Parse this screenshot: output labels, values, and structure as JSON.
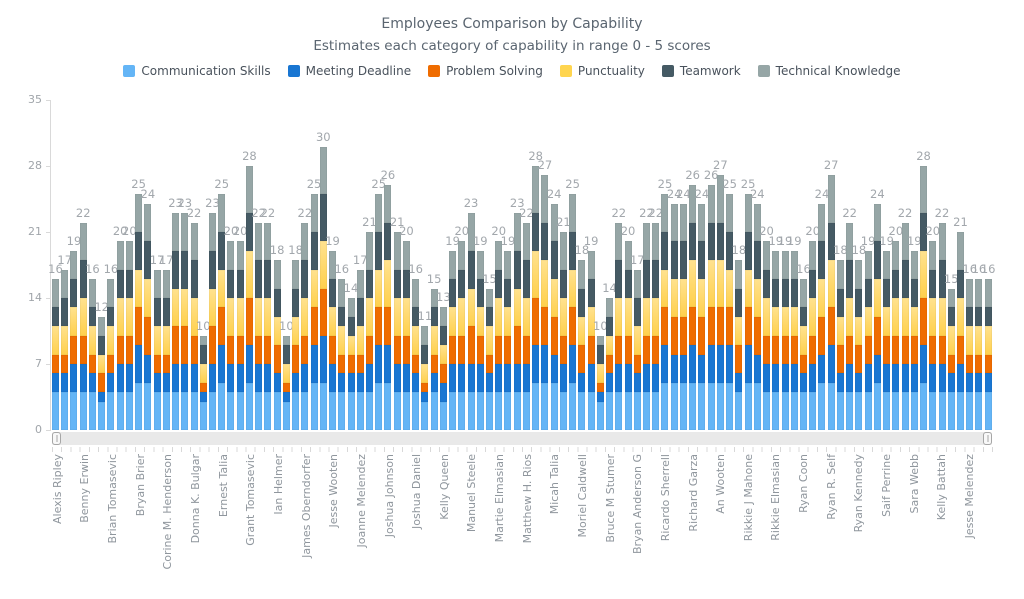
{
  "chart": {
    "title": "Employees Comparison by Capability",
    "subtitle": "Estimates each category of capability in range 0 - 5 scores"
  },
  "legend": {
    "items": [
      {
        "label": "Communication Skills",
        "color": "#64b5f6"
      },
      {
        "label": "Meeting Deadline",
        "color": "#1976d2"
      },
      {
        "label": "Problem Solving",
        "color": "#ef6c00"
      },
      {
        "label": "Punctuality",
        "color": "#ffd54f"
      },
      {
        "label": "Teamwork",
        "color": "#455a64"
      },
      {
        "label": "Technical Knowledge",
        "color": "#96a6a6"
      }
    ]
  },
  "chart_data": {
    "type": "bar",
    "stacked": true,
    "title": "Employees Comparison by Capability",
    "subtitle": "Estimates each category of capability in range 0 - 5 scores",
    "ylim": [
      0,
      35
    ],
    "y_ticks": [
      0,
      7,
      14,
      21,
      28,
      35
    ],
    "grid": false,
    "legend_position": "top",
    "x_labels": [
      "Alexis Ripley",
      "Benny Erwin",
      "Brian Tomasevic",
      "Bryan Brier",
      "Corine M. Henderson",
      "Donna K. Bulgar",
      "Ernest Talia",
      "Grant Tomasevic",
      "Ian Helmer",
      "James Oberndorfer",
      "Jesse Wooten",
      "Joanne Melendez",
      "Joshua Johnson",
      "Joshua Daniel",
      "Kelly Queen",
      "Manuel Steele",
      "Martie Elmasian",
      "Matthew H. Rios",
      "Micah Talia",
      "Moriel Caldwell",
      "Bruce M Stumer",
      "Bryan Anderson G",
      "Ricardo Sherrell",
      "Richard Garza",
      "An Wooten",
      "Rikkie J Mahone",
      "Rikkie Elmasian",
      "Ryan Coon",
      "Ryan R. Self",
      "Ryan Kennedy",
      "Saif Perrine",
      "Sara Webb",
      "Kelly Battah",
      "Jesse Melendez"
    ],
    "points_per_label": 3,
    "series": [
      {
        "name": "Communication Skills",
        "color": "#64b5f6"
      },
      {
        "name": "Meeting Deadline",
        "color": "#1976d2"
      },
      {
        "name": "Problem Solving",
        "color": "#ef6c00"
      },
      {
        "name": "Punctuality",
        "color": "#ffd54f",
        "gradient": [
          "#ffe28f",
          "#ffd04c"
        ]
      },
      {
        "name": "Teamwork",
        "color": "#455a64"
      },
      {
        "name": "Technical Knowledge",
        "color": "#96a6a6"
      }
    ],
    "totals": [
      16,
      17,
      19,
      22,
      16,
      12,
      16,
      20,
      20,
      25,
      24,
      17,
      17,
      23,
      23,
      22,
      10,
      23,
      25,
      20,
      20,
      28,
      22,
      22,
      18,
      10,
      18,
      22,
      25,
      30,
      19,
      16,
      14,
      17,
      21,
      25,
      26,
      21,
      20,
      16,
      11,
      15,
      13,
      19,
      20,
      23,
      19,
      15,
      20,
      19,
      23,
      22,
      28,
      27,
      24,
      21,
      25,
      18,
      19,
      10,
      14,
      22,
      20,
      17,
      22,
      22,
      25,
      24,
      24,
      26,
      24,
      26,
      27,
      25,
      18,
      25,
      24,
      20,
      19,
      19,
      19,
      16,
      20,
      24,
      27,
      18,
      22,
      18,
      19,
      24,
      19,
      20,
      22,
      19,
      28,
      20,
      22,
      15,
      21,
      16,
      16,
      16
    ],
    "segment_estimate_by_total": {
      "10": [
        3,
        1,
        1,
        2,
        2,
        1
      ],
      "11": [
        3,
        1,
        1,
        2,
        2,
        2
      ],
      "12": [
        3,
        1,
        2,
        2,
        2,
        2
      ],
      "13": [
        3,
        2,
        2,
        2,
        2,
        2
      ],
      "14": [
        4,
        2,
        2,
        2,
        2,
        2
      ],
      "15": [
        4,
        2,
        2,
        3,
        2,
        2
      ],
      "16": [
        4,
        2,
        2,
        3,
        2,
        3
      ],
      "17": [
        4,
        2,
        2,
        3,
        3,
        3
      ],
      "18": [
        4,
        2,
        3,
        3,
        3,
        3
      ],
      "19": [
        4,
        3,
        3,
        3,
        3,
        3
      ],
      "20": [
        4,
        3,
        3,
        4,
        3,
        3
      ],
      "21": [
        4,
        3,
        3,
        4,
        3,
        4
      ],
      "22": [
        4,
        3,
        3,
        4,
        4,
        4
      ],
      "23": [
        4,
        3,
        4,
        4,
        4,
        4
      ],
      "24": [
        5,
        3,
        4,
        4,
        4,
        4
      ],
      "25": [
        5,
        4,
        4,
        4,
        4,
        4
      ],
      "26": [
        5,
        4,
        4,
        5,
        4,
        4
      ],
      "27": [
        5,
        4,
        4,
        5,
        4,
        5
      ],
      "28": [
        5,
        4,
        5,
        5,
        4,
        5
      ],
      "30": [
        5,
        5,
        5,
        5,
        5,
        5
      ]
    }
  },
  "scroller": {
    "present": true,
    "position": "bottom"
  }
}
